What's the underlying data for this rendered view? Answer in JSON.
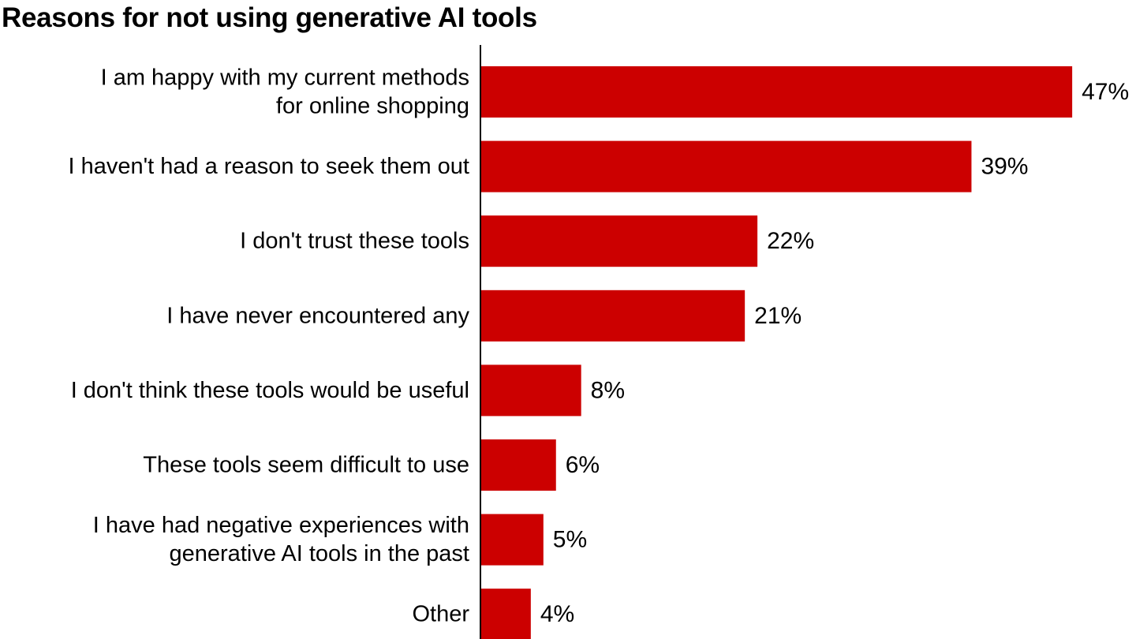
{
  "chart_data": {
    "type": "bar",
    "orientation": "horizontal",
    "title": "Reasons for not using generative AI tools",
    "xlabel": "",
    "ylabel": "",
    "categories": [
      [
        "I am happy with my current methods",
        "for online shopping"
      ],
      [
        "I haven't had a reason to seek them out"
      ],
      [
        "I don't trust these tools"
      ],
      [
        "I have never encountered any"
      ],
      [
        "I don't think these tools would be useful"
      ],
      [
        "These tools seem difficult to use"
      ],
      [
        "I have had negative experiences with",
        "generative AI tools in the past"
      ],
      [
        "Other"
      ]
    ],
    "values": [
      47,
      39,
      22,
      21,
      8,
      6,
      5,
      4
    ],
    "value_labels": [
      "47%",
      "39%",
      "22%",
      "21%",
      "8%",
      "6%",
      "5%",
      "4%"
    ],
    "unit": "%",
    "grid": false,
    "legend": "none",
    "bar_color": "#cc0000",
    "axis_color": "#000000"
  }
}
